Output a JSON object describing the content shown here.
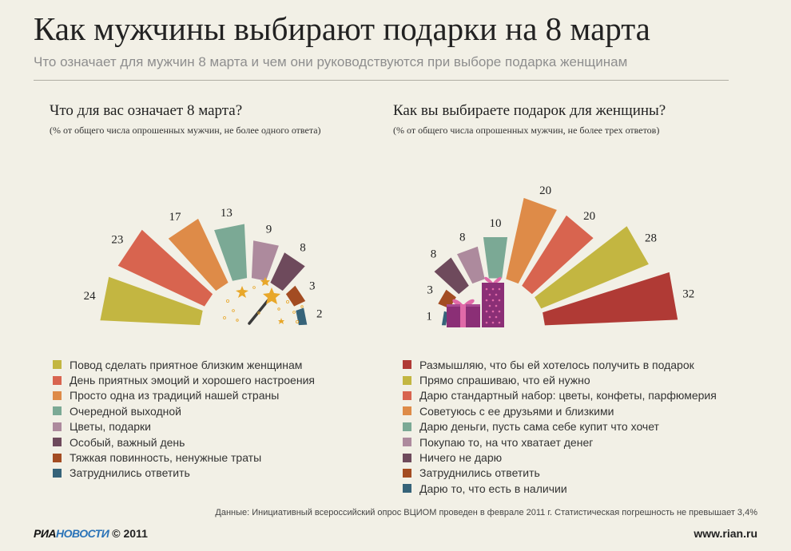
{
  "header": {
    "title": "Как мужчины выбирают подарки на 8 марта",
    "subtitle": "Что означает для мужчин 8 марта и чем они руководствуются при выборе подарка женщинам"
  },
  "chart_data": [
    {
      "type": "bar",
      "layout": "radial fan, bars radiating from the center to the left",
      "title": "Что для вас означает 8 марта?",
      "note": "(% от общего числа опрошенных мужчин, не более одного ответа)",
      "categories": [
        "Повод сделать приятное близким женщинам",
        "День приятных эмоций и хорошего настроения",
        "Просто одна из традиций нашей страны",
        "Очередной выходной",
        "Цветы, подарки",
        "Особый, важный день",
        "Тяжкая повинность, ненужные траты",
        "Затруднились ответить"
      ],
      "values": [
        24,
        23,
        17,
        13,
        9,
        8,
        3,
        2
      ],
      "colors": [
        "#c3b641",
        "#d8644f",
        "#de8b48",
        "#7ba995",
        "#ad8a9d",
        "#6e4a5c",
        "#a34c22",
        "#366379"
      ],
      "center_icon": "magic-wand-icon"
    },
    {
      "type": "bar",
      "layout": "radial fan, bars radiating from the center to the right",
      "title": "Как вы выбираете подарок для женщины?",
      "note": "(% от общего числа опрошенных мужчин, не более трех ответов)",
      "categories": [
        "Размышляю, что бы ей хотелось получить в подарок",
        "Прямо спрашиваю, что ей нужно",
        "Дарю стандартный набор: цветы, конфеты, парфюмерия",
        "Советуюсь с ее друзьями и близкими",
        "Дарю деньги, пусть сама себе купит что хочет",
        "Покупаю то, на что хватает денег",
        "Ничего не дарю",
        "Затруднились ответить",
        "Дарю то, что есть в наличии"
      ],
      "values": [
        32,
        28,
        20,
        20,
        10,
        8,
        8,
        3,
        1
      ],
      "colors": [
        "#b03a35",
        "#c3b641",
        "#d8644f",
        "#de8b48",
        "#7ba995",
        "#ad8a9d",
        "#6e4a5c",
        "#a34c22",
        "#366379"
      ],
      "center_icon": "gift-boxes-icon"
    }
  ],
  "footer": {
    "source": "Данные: Инициативный всероссийский опрос ВЦИОМ проведен в феврале 2011 г. Статистическая погрешность не превышает 3,4%",
    "brand_part1": "РИА",
    "brand_part2": "НОВОСТИ",
    "copyright": "© 2011",
    "site": "www.rian.ru"
  }
}
